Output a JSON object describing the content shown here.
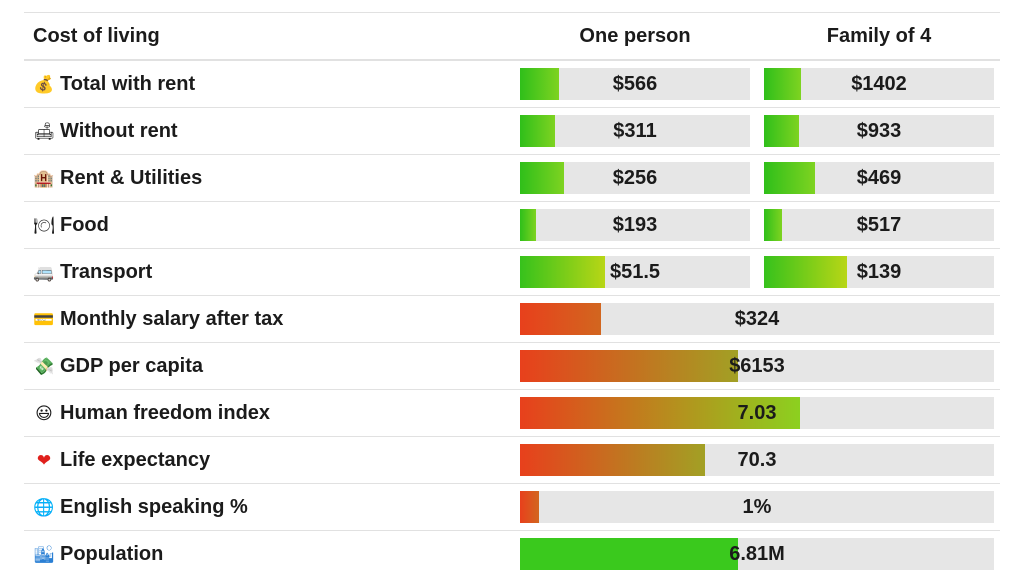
{
  "header": {
    "title": "Cost of living",
    "col_one": "One person",
    "col_family": "Family of 4"
  },
  "rows": [
    {
      "icon": "money-bag-icon",
      "emoji": "💰",
      "label": "Total with rent",
      "one": {
        "value": "$566",
        "level": 0.17
      },
      "family": {
        "value": "$1402",
        "level": 0.16
      }
    },
    {
      "icon": "couch-icon",
      "emoji": "🛋",
      "label": "Without rent",
      "one": {
        "value": "$311",
        "level": 0.15
      },
      "family": {
        "value": "$933",
        "level": 0.15
      }
    },
    {
      "icon": "hotel-icon",
      "emoji": "🏨",
      "label": "Rent & Utilities",
      "one": {
        "value": "$256",
        "level": 0.19
      },
      "family": {
        "value": "$469",
        "level": 0.22
      }
    },
    {
      "icon": "plate-icon",
      "emoji": "🍽",
      "label": "Food",
      "one": {
        "value": "$193",
        "level": 0.07
      },
      "family": {
        "value": "$517",
        "level": 0.08
      }
    },
    {
      "icon": "van-icon",
      "emoji": "🚐",
      "label": "Transport",
      "one": {
        "value": "$51.5",
        "level": 0.37
      },
      "family": {
        "value": "$139",
        "level": 0.36
      }
    },
    {
      "icon": "credit-card-icon",
      "emoji": "💳",
      "label": "Monthly salary after tax",
      "wide": {
        "value": "$324",
        "level": 0.17
      }
    },
    {
      "icon": "money-wings-icon",
      "emoji": "💸",
      "label": "GDP per capita",
      "wide": {
        "value": "$6153",
        "level": 0.46
      }
    },
    {
      "icon": "smiley-icon",
      "emoji": "😃",
      "label": "Human freedom index",
      "wide": {
        "value": "7.03",
        "level": 0.59
      }
    },
    {
      "icon": "heart-icon",
      "emoji": "❤",
      "label": "Life expectancy",
      "wide": {
        "value": "70.3",
        "level": 0.39
      }
    },
    {
      "icon": "globe-icon",
      "emoji": "🌐",
      "label": "English speaking %",
      "wide": {
        "value": "1%",
        "level": 0.04
      }
    },
    {
      "icon": "cityscape-icon",
      "emoji": "🏙",
      "label": "Population",
      "wide": {
        "value": "6.81M",
        "level": 0.46
      }
    }
  ],
  "colors": {
    "good": "#3ac91d",
    "bad": "#e8401c",
    "track": "#e6e6e6"
  }
}
